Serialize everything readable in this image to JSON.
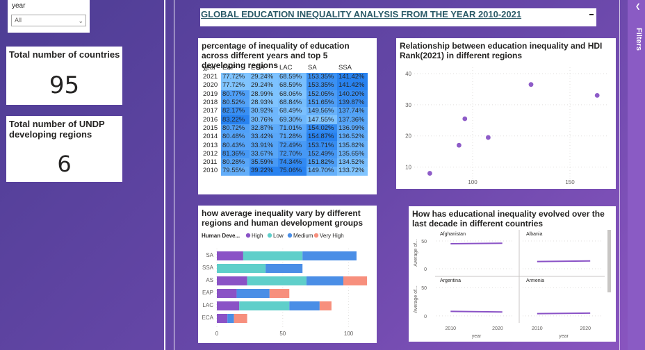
{
  "slicer": {
    "title": "year",
    "selected": "All"
  },
  "kpis": [
    {
      "title": "Total number of countries",
      "value": "95"
    },
    {
      "title": "Total number of UNDP developing regions",
      "value": "6"
    }
  ],
  "main_title": "GLOBAL EDUCATION INEQUALITY ANALYSIS FROM THE YEAR 2010-2021",
  "filters_label": "Filters",
  "matrix": {
    "title": "percentage of inequality of education across different years and top 5 developing regions",
    "columns": [
      "year",
      "EAP",
      "ECA",
      "LAC",
      "SA",
      "SSA"
    ],
    "rows": [
      [
        "2021",
        "77.72%",
        "29.24%",
        "68.59%",
        "153.35%",
        "141.42%"
      ],
      [
        "2020",
        "77.72%",
        "29.24%",
        "68.59%",
        "153.35%",
        "141.42%"
      ],
      [
        "2019",
        "80.77%",
        "28.99%",
        "68.06%",
        "152.05%",
        "140.20%"
      ],
      [
        "2018",
        "80.52%",
        "28.93%",
        "68.84%",
        "151.65%",
        "139.87%"
      ],
      [
        "2017",
        "82.17%",
        "30.92%",
        "68.49%",
        "149.56%",
        "137.74%"
      ],
      [
        "2016",
        "83.22%",
        "30.76%",
        "69.30%",
        "147.55%",
        "137.36%"
      ],
      [
        "2015",
        "80.72%",
        "32.87%",
        "71.01%",
        "154.02%",
        "136.99%"
      ],
      [
        "2014",
        "80.48%",
        "33.42%",
        "71.28%",
        "154.87%",
        "136.52%"
      ],
      [
        "2013",
        "80.43%",
        "33.91%",
        "72.49%",
        "153.71%",
        "135.82%"
      ],
      [
        "2012",
        "81.36%",
        "33.67%",
        "72.70%",
        "152.49%",
        "135.65%"
      ],
      [
        "2011",
        "80.28%",
        "35.59%",
        "74.34%",
        "151.82%",
        "134.52%"
      ],
      [
        "2010",
        "79.55%",
        "39.22%",
        "75.06%",
        "149.70%",
        "133.72%"
      ]
    ]
  },
  "chart_data": [
    {
      "type": "scatter",
      "title": "Relationship between education inequality and HDI Rank(2021) in different regions",
      "xlim": [
        70,
        170
      ],
      "ylim": [
        5,
        42
      ],
      "xticks": [
        "100",
        "150"
      ],
      "yticks": [
        "10",
        "20",
        "30",
        "40"
      ],
      "grid": true,
      "color": "#8e5cc8",
      "points": [
        {
          "x": 78,
          "y": 8
        },
        {
          "x": 93,
          "y": 17
        },
        {
          "x": 96,
          "y": 25.5
        },
        {
          "x": 108,
          "y": 19.5
        },
        {
          "x": 130,
          "y": 36.5
        },
        {
          "x": 164,
          "y": 33
        }
      ]
    },
    {
      "type": "bar",
      "stacked": true,
      "orientation": "horizontal",
      "title": "how average inequality vary by different regions and human development groups",
      "legend_title": "Human Deve...",
      "legend_placement": "top-left",
      "categories": [
        "SA",
        "SSA",
        "AS",
        "EAP",
        "LAC",
        "ECA"
      ],
      "xticks": [
        "0",
        "50",
        "100"
      ],
      "xlim": [
        0,
        115
      ],
      "series": [
        {
          "name": "High",
          "color": "#8a52c6",
          "values": [
            20,
            0,
            23,
            15,
            17,
            8
          ]
        },
        {
          "name": "Low",
          "color": "#5fcfca",
          "values": [
            45,
            37,
            45,
            0,
            38,
            0
          ]
        },
        {
          "name": "Medium",
          "color": "#4a8ee6",
          "values": [
            41,
            28,
            28,
            25,
            23,
            5
          ]
        },
        {
          "name": "Very High",
          "color": "#f78f7d",
          "values": [
            0,
            0,
            18,
            15,
            9,
            10
          ]
        }
      ]
    },
    {
      "type": "line",
      "title": "How has educational inequality evolved over the last decade in different countries",
      "ylabel": "Average of...",
      "xlabel": "year",
      "yticks": [
        "0",
        "50"
      ],
      "xticks": [
        "2010",
        "2020"
      ],
      "color": "#8a52c6",
      "panels": [
        {
          "name": "Afghanistan",
          "x": [
            2010,
            2021
          ],
          "y": [
            45,
            46
          ]
        },
        {
          "name": "Albania",
          "x": [
            2010,
            2021
          ],
          "y": [
            13,
            14
          ]
        },
        {
          "name": "Argentina",
          "x": [
            2010,
            2021
          ],
          "y": [
            8,
            7
          ]
        },
        {
          "name": "Armenia",
          "x": [
            2010,
            2021
          ],
          "y": [
            4,
            5
          ]
        }
      ]
    }
  ]
}
